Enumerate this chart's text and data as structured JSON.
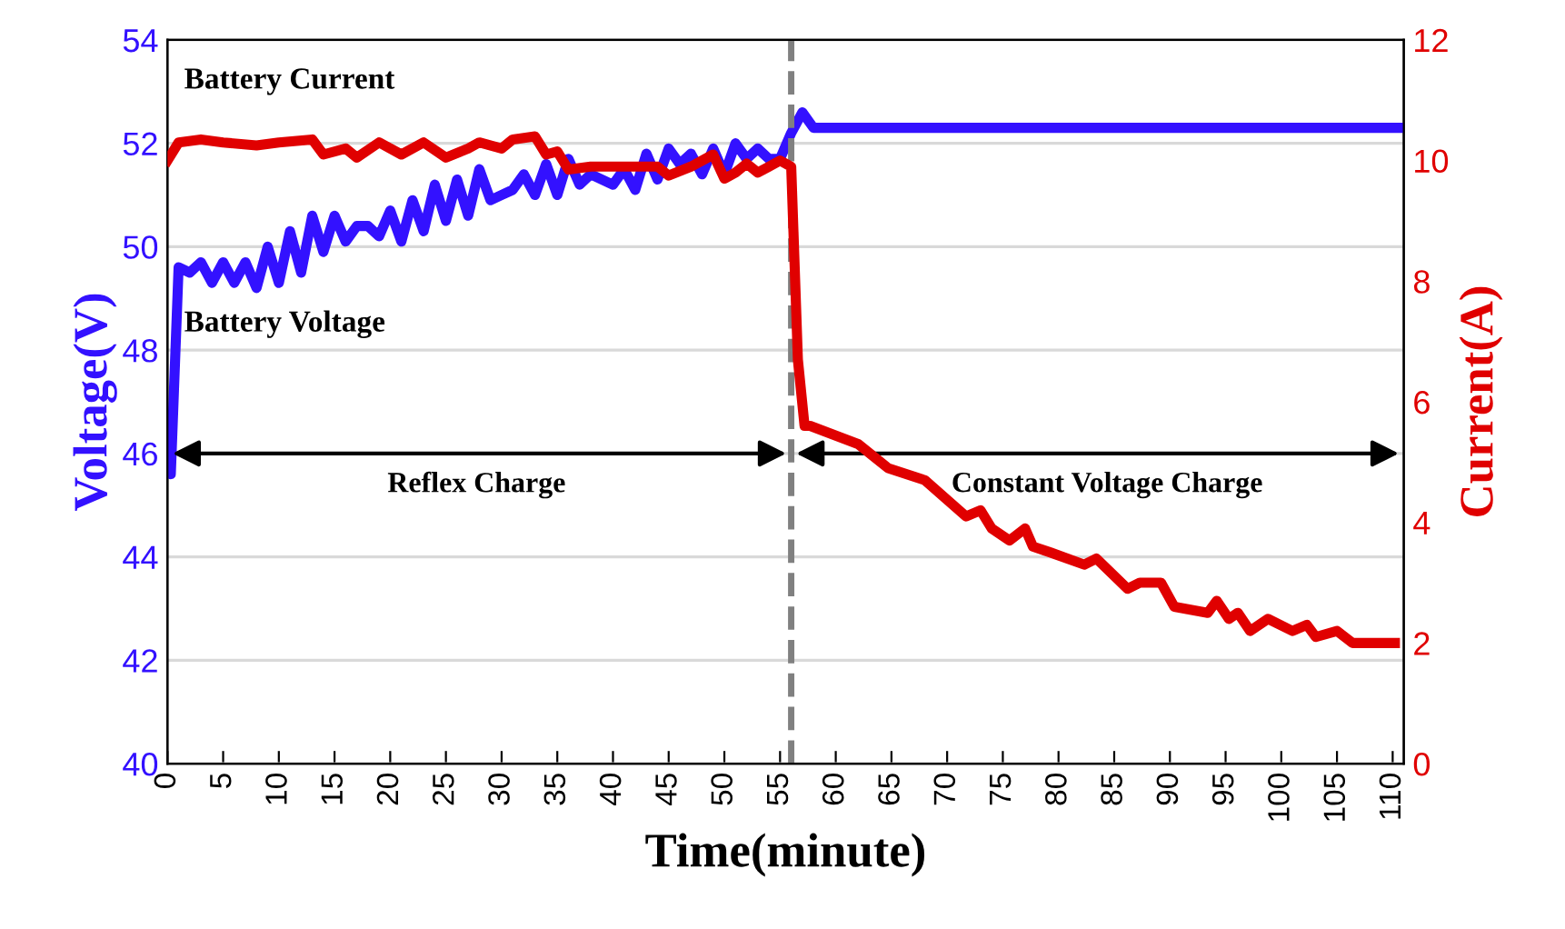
{
  "chart_data": {
    "type": "line",
    "xlabel": "Time(minute)",
    "ylabel": "Voltage(V)",
    "y2label": "Current(A)",
    "xlim": [
      0,
      111
    ],
    "xticks": [
      0,
      5,
      10,
      15,
      20,
      25,
      30,
      35,
      40,
      45,
      50,
      55,
      60,
      65,
      70,
      75,
      80,
      85,
      90,
      95,
      100,
      105,
      110
    ],
    "ylim": [
      40,
      54
    ],
    "yticks": [
      40,
      42,
      44,
      46,
      48,
      50,
      52,
      54
    ],
    "y2lim": [
      0,
      12
    ],
    "y2ticks": [
      0,
      2,
      4,
      6,
      8,
      10,
      12
    ],
    "grid": "y",
    "legend": false,
    "marker": "none",
    "line_style": "solid",
    "series": [
      {
        "name": "Battery Voltage",
        "color": "#3311ff",
        "axis": "y",
        "x": [
          0,
          0.3,
          1,
          2,
          3,
          4,
          5,
          6,
          7,
          8,
          9,
          10,
          11,
          12,
          13,
          14,
          15,
          16,
          17,
          18,
          19,
          20,
          21,
          22,
          23,
          24,
          25,
          26,
          27,
          28,
          29,
          30,
          31,
          32,
          33,
          34,
          35,
          36,
          37,
          38,
          39,
          40,
          41,
          42,
          43,
          44,
          45,
          46,
          47,
          48,
          49,
          50,
          51,
          52,
          53,
          54,
          55,
          56,
          57,
          58,
          60,
          65,
          70,
          75,
          80,
          85,
          90,
          95,
          100,
          105,
          111
        ],
        "values": [
          46.0,
          45.6,
          49.6,
          49.5,
          49.7,
          49.3,
          49.7,
          49.3,
          49.7,
          49.2,
          50.0,
          49.3,
          50.3,
          49.5,
          50.6,
          49.9,
          50.6,
          50.1,
          50.4,
          50.4,
          50.2,
          50.7,
          50.1,
          50.9,
          50.3,
          51.2,
          50.5,
          51.3,
          50.6,
          51.5,
          50.9,
          51.0,
          51.1,
          51.4,
          51.0,
          51.6,
          51.0,
          51.7,
          51.2,
          51.4,
          51.3,
          51.2,
          51.5,
          51.1,
          51.8,
          51.3,
          51.9,
          51.6,
          51.8,
          51.4,
          51.9,
          51.4,
          52.0,
          51.7,
          51.9,
          51.7,
          51.7,
          52.2,
          52.6,
          52.3,
          52.3,
          52.3,
          52.3,
          52.3,
          52.3,
          52.3,
          52.3,
          52.3,
          52.3,
          52.3,
          52.3
        ]
      },
      {
        "name": "Battery Current",
        "color": "#e00000",
        "axis": "y2",
        "x": [
          0,
          1,
          3,
          5,
          8,
          10,
          13,
          14,
          16,
          17,
          19,
          21,
          23,
          25,
          27,
          28,
          30,
          31,
          33,
          34,
          35,
          36,
          38,
          44,
          45,
          47,
          49,
          50,
          51,
          52,
          53,
          54,
          55,
          56,
          56.6,
          57.2,
          57.7,
          62,
          64.7,
          68,
          71.7,
          73,
          74,
          75.6,
          77,
          77.7,
          79.3,
          82.3,
          83.4,
          86.2,
          87.3,
          89.2,
          90.4,
          93.4,
          94.2,
          95.3,
          96.1,
          97.2,
          98.8,
          101,
          102.3,
          103.1,
          105,
          106.4,
          110.2
        ],
        "values": [
          10.0,
          10.3,
          10.35,
          10.3,
          10.25,
          10.3,
          10.35,
          10.1,
          10.2,
          10.05,
          10.3,
          10.1,
          10.3,
          10.05,
          10.2,
          10.3,
          10.2,
          10.35,
          10.4,
          10.1,
          10.15,
          9.85,
          9.9,
          9.9,
          9.75,
          9.9,
          10.1,
          9.7,
          9.8,
          9.95,
          9.8,
          9.9,
          10.0,
          9.9,
          6.7,
          5.6,
          5.6,
          5.3,
          4.9,
          4.7,
          4.1,
          4.2,
          3.9,
          3.7,
          3.9,
          3.6,
          3.5,
          3.3,
          3.4,
          2.9,
          3.0,
          3.0,
          2.6,
          2.5,
          2.7,
          2.4,
          2.5,
          2.2,
          2.4,
          2.2,
          2.3,
          2.1,
          2.2,
          2.0,
          2.0
        ]
      }
    ],
    "ref_lines": [
      {
        "axis": "x",
        "value": 56,
        "color": "#808080",
        "line_style": "dashed"
      }
    ],
    "annotations": [
      "Reflex Charge",
      "Constant Voltage Charge"
    ]
  }
}
